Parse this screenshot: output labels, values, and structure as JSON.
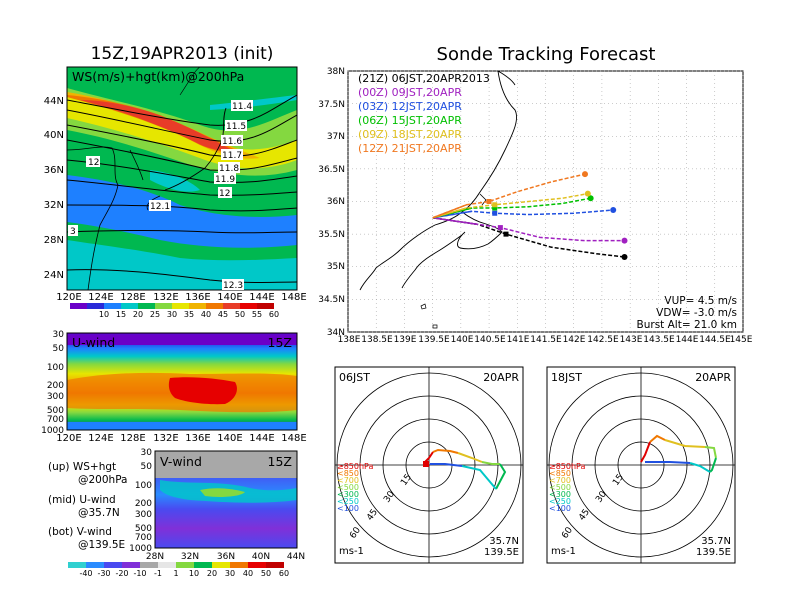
{
  "colors": {
    "ws_scale": [
      "#6a00c8",
      "#2a2ad8",
      "#1e80ff",
      "#00c8c8",
      "#00b850",
      "#84d840",
      "#e6e600",
      "#f0b400",
      "#f07800",
      "#e83c28",
      "#e60000",
      "#c00000"
    ],
    "v_scale": [
      "#30d0d0",
      "#2a8cff",
      "#4a4af0",
      "#8030d8",
      "#a8a8a8",
      "#e6e6e6",
      "#84d840",
      "#00b850",
      "#e6e600",
      "#f07800",
      "#e60000",
      "#c00000"
    ]
  },
  "main_title": "Sonde Tracking Forecast",
  "left": {
    "title": "15Z,19APR2013 (init)",
    "map_label": "WS(m/s)+hgt(km)@200hPa",
    "lat_ticks": [
      "44N",
      "40N",
      "36N",
      "32N",
      "28N",
      "24N"
    ],
    "lon_ticks": [
      "120E",
      "124E",
      "128E",
      "132E",
      "136E",
      "140E",
      "144E",
      "148E"
    ],
    "contour_labels": [
      "11.4",
      "11.5",
      "11.6",
      "11.7",
      "11.8",
      "11.9",
      "12",
      "12",
      "12.1",
      "12.3",
      "3"
    ],
    "ws_colorbar_ticks": [
      "10",
      "15",
      "20",
      "25",
      "30",
      "35",
      "40",
      "45",
      "50",
      "55",
      "60"
    ],
    "u_panel_label": "U-wind",
    "u_time": "15Z",
    "p_ticks": [
      "30",
      "50",
      "100",
      "200",
      "300",
      "500",
      "700",
      "1000"
    ],
    "v_panel_label": "V-wind",
    "v_time": "15Z",
    "v_lat_ticks": [
      "28N",
      "32N",
      "36N",
      "40N",
      "44N"
    ],
    "v_colorbar_ticks": [
      "-40",
      "-30",
      "-20",
      "-10",
      "-1",
      "1",
      "10",
      "20",
      "30",
      "40",
      "50",
      "60"
    ],
    "legend": {
      "up_line1": "(up) WS+hgt",
      "up_line2": "@200hPa",
      "mid_line1": "(mid) U-wind",
      "mid_line2": "@35.7N",
      "bot_line1": "(bot) V-wind",
      "bot_line2": "@139.5E"
    }
  },
  "chart_data": [
    {
      "type": "line",
      "title": "Sonde Tracking Forecast",
      "xlim": [
        138,
        145
      ],
      "ylim": [
        34,
        38
      ],
      "x_ticks": [
        "138E",
        "138.5E",
        "139E",
        "139.5E",
        "140E",
        "140.5E",
        "141E",
        "141.5E",
        "142E",
        "142.5E",
        "143E",
        "143.5E",
        "144E",
        "144.5E",
        "145E"
      ],
      "y_ticks": [
        "34N",
        "34.5N",
        "35N",
        "35.5N",
        "36N",
        "36.5N",
        "37N",
        "37.5N",
        "38N"
      ],
      "series": [
        {
          "name": "(21Z) 06JST,20APR2013",
          "color": "#000000",
          "x": [
            139.5,
            140.3,
            140.8,
            141.6,
            142.4,
            142.9
          ],
          "y": [
            35.75,
            35.65,
            35.5,
            35.3,
            35.2,
            35.15
          ]
        },
        {
          "name": "(00Z) 09JST,20APR",
          "color": "#a020c0",
          "x": [
            139.5,
            140.3,
            140.7,
            141.4,
            142.2,
            142.9
          ],
          "y": [
            35.75,
            35.65,
            35.6,
            35.45,
            35.4,
            35.4
          ]
        },
        {
          "name": "(03Z) 12JST,20APR",
          "color": "#2050e0",
          "x": [
            139.5,
            140.2,
            140.6,
            141.2,
            142.0,
            142.7
          ],
          "y": [
            35.75,
            35.85,
            35.82,
            35.8,
            35.82,
            35.87
          ]
        },
        {
          "name": "(06Z) 15JST,20APR",
          "color": "#00c000",
          "x": [
            139.5,
            140.2,
            140.6,
            141.2,
            141.8,
            142.3
          ],
          "y": [
            35.75,
            35.9,
            35.9,
            35.92,
            35.97,
            36.05
          ]
        },
        {
          "name": "(09Z) 18JST,20APR",
          "color": "#e0c020",
          "x": [
            139.5,
            140.1,
            140.6,
            141.2,
            141.8,
            142.25
          ],
          "y": [
            35.75,
            35.9,
            35.95,
            36.0,
            36.05,
            36.12
          ]
        },
        {
          "name": "(12Z) 21JST,20APR",
          "color": "#f07820",
          "x": [
            139.5,
            140.1,
            140.5,
            141.0,
            141.6,
            142.2
          ],
          "y": [
            35.75,
            35.95,
            36.0,
            36.15,
            36.3,
            36.42
          ]
        }
      ],
      "annotations": [
        "VUP=  4.5 m/s",
        "VDW= -3.0 m/s",
        "Burst Alt= 21.0 km"
      ]
    },
    {
      "type": "line",
      "title": "06JST 20APR",
      "rings": [
        "15",
        "30",
        "45",
        "60"
      ],
      "legend": [
        "≥850hPa",
        "<850",
        "<700",
        "<500",
        "<300",
        "<250",
        "<100"
      ],
      "unit": "ms-1",
      "location": [
        "35.7N",
        "139.5E"
      ],
      "left_label": "06JST",
      "right_label": "20APR"
    },
    {
      "type": "line",
      "title": "18JST 20APR",
      "rings": [
        "15",
        "30",
        "45",
        "60"
      ],
      "legend": [
        "≥850hPa",
        "<850",
        "<700",
        "<500",
        "<300",
        "<250",
        "<100"
      ],
      "unit": "ms-1",
      "location": [
        "35.7N",
        "139.5E"
      ],
      "left_label": "18JST",
      "right_label": "20APR"
    }
  ]
}
